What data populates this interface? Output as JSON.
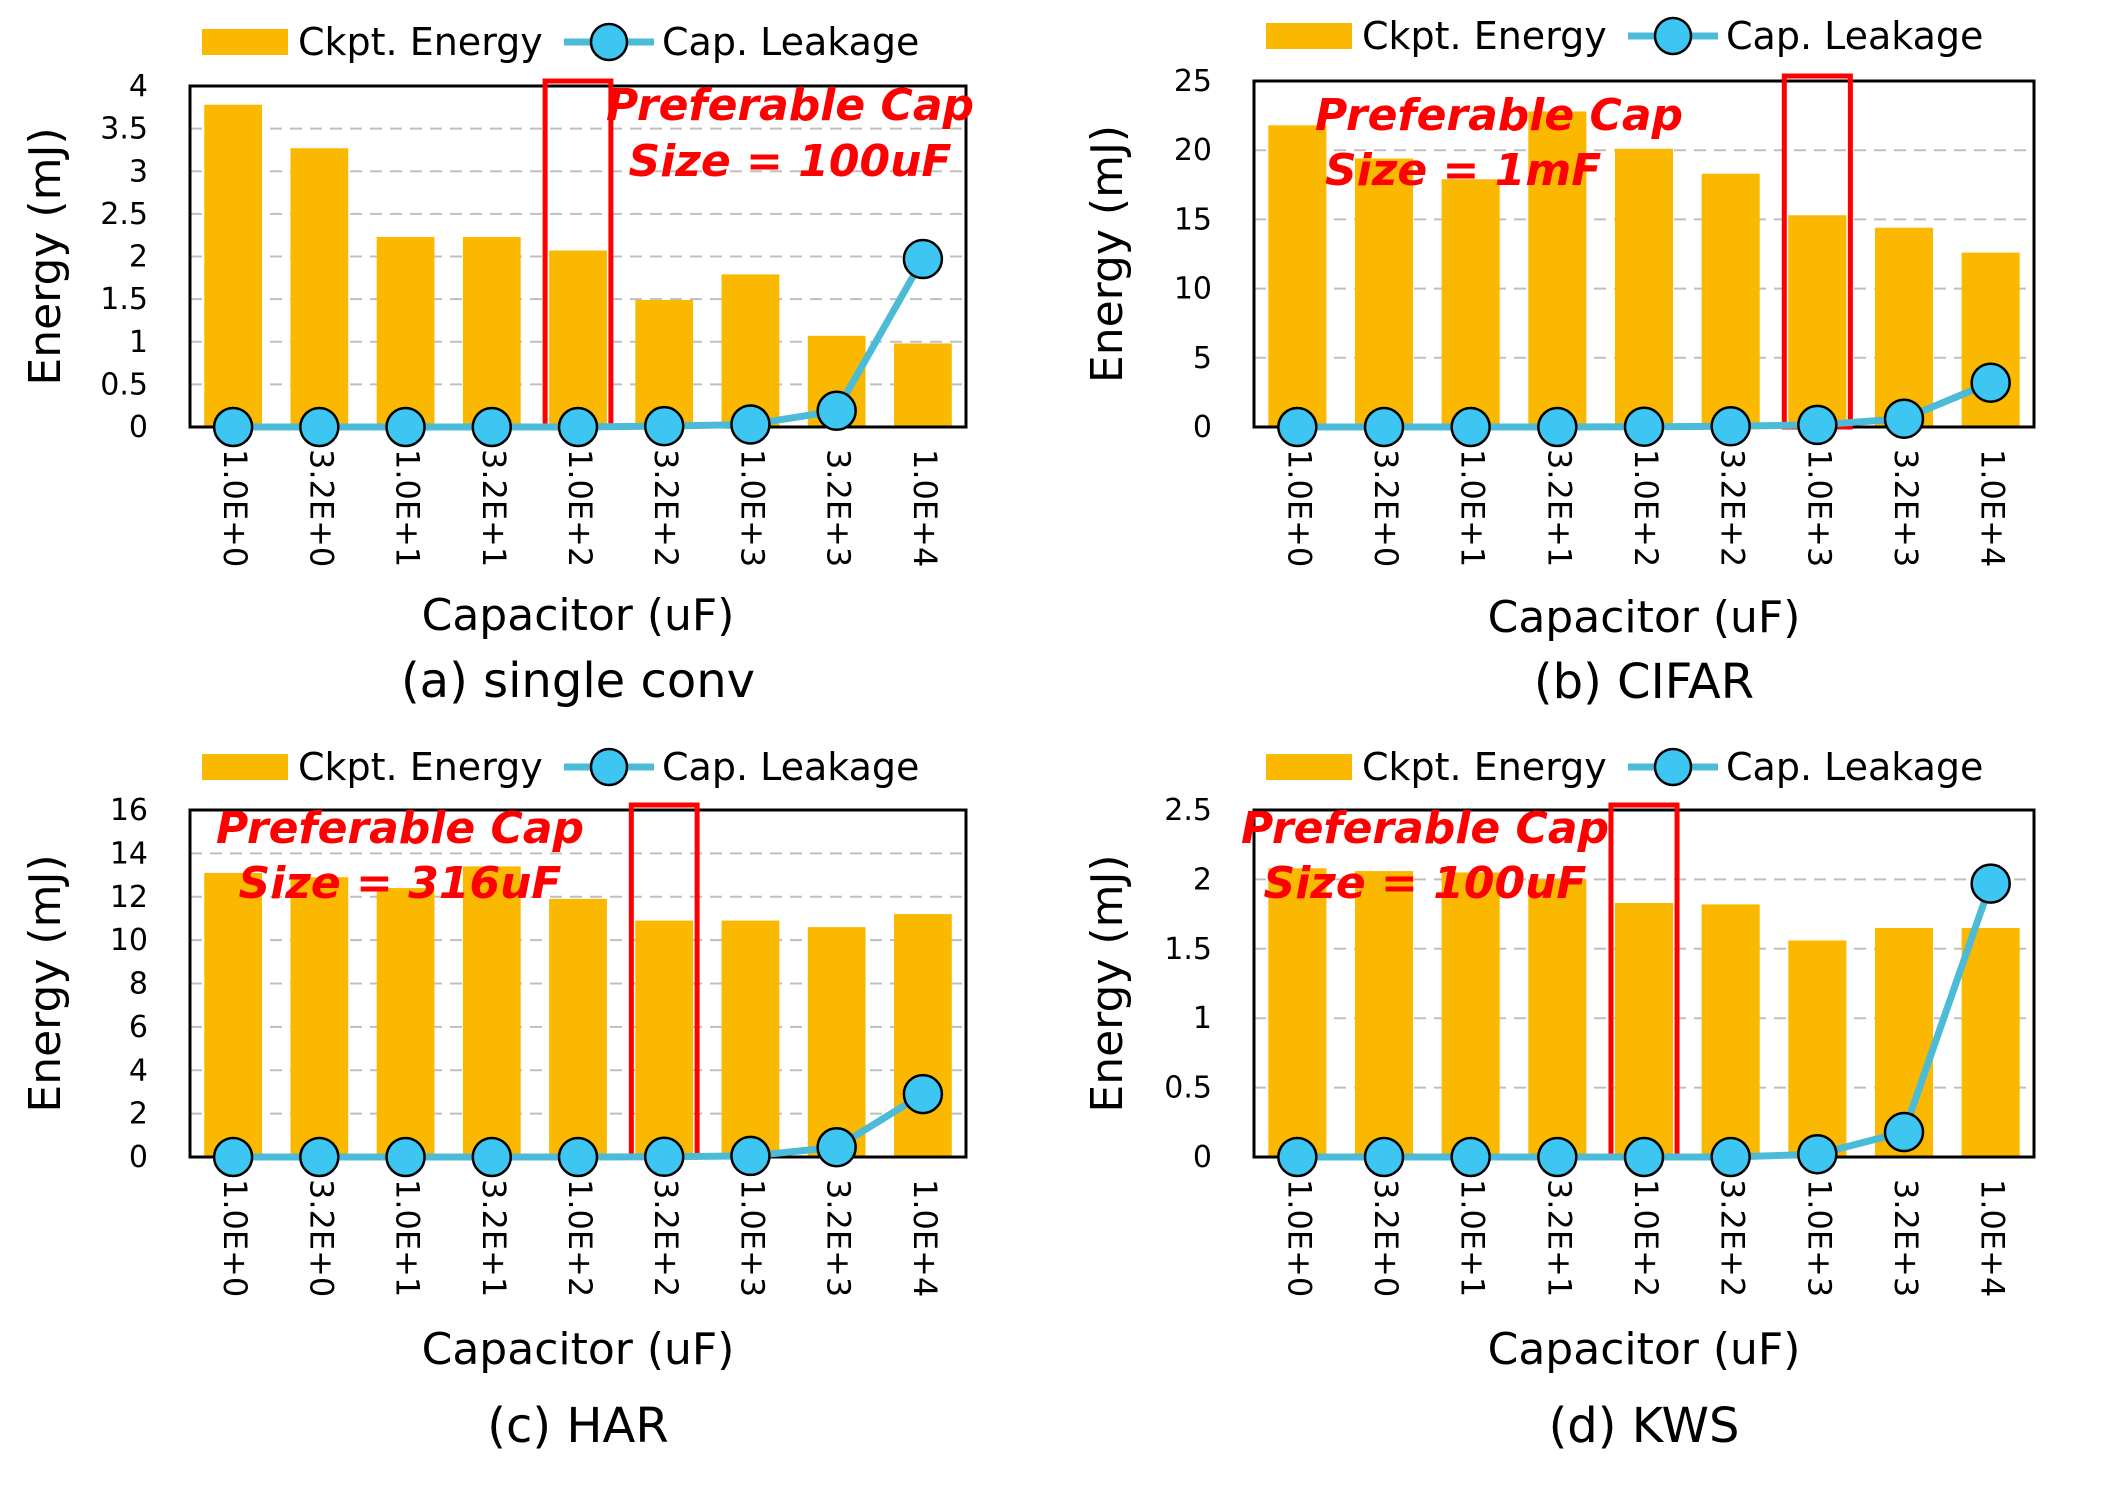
{
  "colors": {
    "bar": "#FBB800",
    "line": "#4BBBD8",
    "marker_fill": "#3DC6F2",
    "marker_stroke": "#000000",
    "highlight": "#FF0000",
    "annotation": "#FF0000",
    "grid": "#BFBFBF"
  },
  "chart_data": [
    {
      "type": "bar",
      "caption": "(a) single conv",
      "xlabel": "Capacitor (uF)",
      "ylabel": "Energy (mJ)",
      "categories": [
        "1.0E+0",
        "3.2E+0",
        "1.0E+1",
        "3.2E+1",
        "1.0E+2",
        "3.2E+2",
        "1.0E+3",
        "3.2E+3",
        "1.0E+4"
      ],
      "ylim": [
        0,
        4
      ],
      "yticks": [
        "0",
        "0.5",
        "1",
        "1.5",
        "2",
        "2.5",
        "3",
        "3.5",
        "4"
      ],
      "grid": true,
      "legend_position": "top",
      "series": [
        {
          "name": "Ckpt. Energy",
          "type": "bar",
          "values": [
            3.78,
            3.27,
            2.23,
            2.23,
            2.07,
            1.49,
            1.79,
            1.07,
            0.98
          ]
        },
        {
          "name": "Cap. Leakage",
          "type": "line",
          "values": [
            0.0,
            0.0,
            0.0,
            0.0,
            0.0,
            0.01,
            0.03,
            0.19,
            1.97
          ]
        }
      ],
      "highlight_index": 4,
      "annotation": [
        "Preferable Cap",
        "Size = 100uF"
      ]
    },
    {
      "type": "bar",
      "caption": "(b) CIFAR",
      "xlabel": "Capacitor (uF)",
      "ylabel": "Energy (mJ)",
      "categories": [
        "1.0E+0",
        "3.2E+0",
        "1.0E+1",
        "3.2E+1",
        "1.0E+2",
        "3.2E+2",
        "1.0E+3",
        "3.2E+3",
        "1.0E+4"
      ],
      "ylim": [
        0,
        25
      ],
      "yticks": [
        "0",
        "5",
        "10",
        "15",
        "20",
        "25"
      ],
      "grid": true,
      "legend_position": "top",
      "series": [
        {
          "name": "Ckpt. Energy",
          "type": "bar",
          "values": [
            21.8,
            19.4,
            17.9,
            22.8,
            20.1,
            18.3,
            15.3,
            14.4,
            12.6
          ]
        },
        {
          "name": "Cap. Leakage",
          "type": "line",
          "values": [
            0.0,
            0.0,
            0.0,
            0.0,
            0.02,
            0.05,
            0.15,
            0.6,
            3.2
          ]
        }
      ],
      "highlight_index": 6,
      "annotation": [
        "Preferable Cap",
        "Size = 1mF"
      ]
    },
    {
      "type": "bar",
      "caption": "(c) HAR",
      "xlabel": "Capacitor (uF)",
      "ylabel": "Energy (mJ)",
      "categories": [
        "1.0E+0",
        "3.2E+0",
        "1.0E+1",
        "3.2E+1",
        "1.0E+2",
        "3.2E+2",
        "1.0E+3",
        "3.2E+3",
        "1.0E+4"
      ],
      "ylim": [
        0,
        16
      ],
      "yticks": [
        "0",
        "2",
        "4",
        "6",
        "8",
        "10",
        "12",
        "14",
        "16"
      ],
      "grid": true,
      "legend_position": "top",
      "series": [
        {
          "name": "Ckpt. Energy",
          "type": "bar",
          "values": [
            13.1,
            12.9,
            12.4,
            13.4,
            11.9,
            10.9,
            10.9,
            10.6,
            11.2
          ]
        },
        {
          "name": "Cap. Leakage",
          "type": "line",
          "values": [
            0.0,
            0.0,
            0.0,
            0.0,
            0.0,
            0.01,
            0.05,
            0.45,
            2.9
          ]
        }
      ],
      "highlight_index": 5,
      "annotation": [
        "Preferable Cap",
        "Size = 316uF"
      ]
    },
    {
      "type": "bar",
      "caption": "(d) KWS",
      "xlabel": "Capacitor (uF)",
      "ylabel": "Energy (mJ)",
      "categories": [
        "1.0E+0",
        "3.2E+0",
        "1.0E+1",
        "3.2E+1",
        "1.0E+2",
        "3.2E+2",
        "1.0E+3",
        "3.2E+3",
        "1.0E+4"
      ],
      "ylim": [
        0,
        2.5
      ],
      "yticks": [
        "0",
        "0.5",
        "1",
        "1.5",
        "2",
        "2.5"
      ],
      "grid": true,
      "legend_position": "top",
      "series": [
        {
          "name": "Ckpt. Energy",
          "type": "bar",
          "values": [
            2.08,
            2.06,
            2.05,
            2.0,
            1.83,
            1.82,
            1.56,
            1.65,
            1.65
          ]
        },
        {
          "name": "Cap. Leakage",
          "type": "line",
          "values": [
            0.0,
            0.0,
            0.0,
            0.0,
            0.0,
            0.0,
            0.02,
            0.18,
            1.97
          ]
        }
      ],
      "highlight_index": 4,
      "annotation": [
        "Preferable Cap",
        "Size = 100uF"
      ]
    }
  ]
}
